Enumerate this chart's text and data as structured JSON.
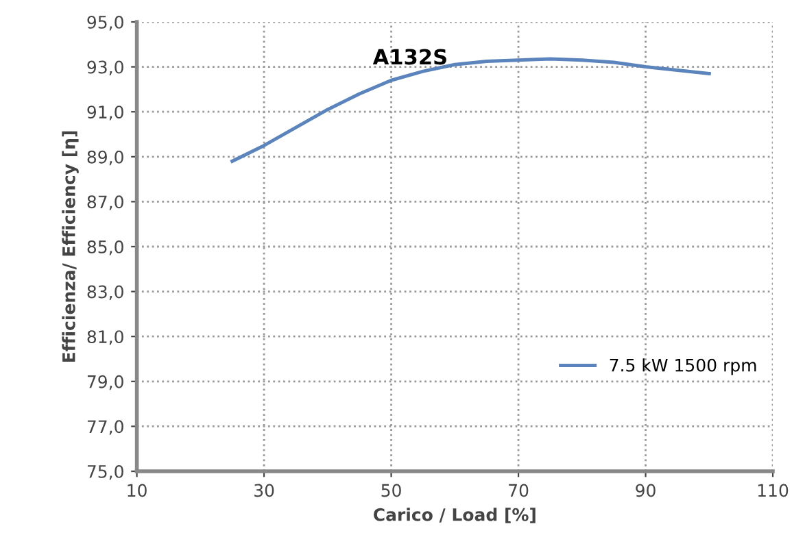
{
  "chart_data": {
    "type": "line",
    "title": "A132S",
    "xlabel": "Carico / Load [%]",
    "ylabel": "Efficienza/ Efficiency [η]",
    "x": [
      25,
      30,
      35,
      40,
      45,
      50,
      55,
      60,
      65,
      70,
      75,
      80,
      85,
      90,
      95,
      100
    ],
    "series": [
      {
        "name": "7.5 kW 1500 rpm",
        "color": "#5b84bd",
        "values": [
          88.8,
          89.5,
          90.3,
          91.1,
          91.8,
          92.4,
          92.8,
          93.1,
          93.25,
          93.3,
          93.35,
          93.3,
          93.2,
          93.0,
          92.85,
          92.7
        ]
      }
    ],
    "xlim": [
      10,
      110
    ],
    "xticks": [
      10,
      30,
      50,
      70,
      90,
      110
    ],
    "ylim": [
      75,
      95
    ],
    "yticks": [
      {
        "value": 75,
        "label": "75,0"
      },
      {
        "value": 77,
        "label": "77,0"
      },
      {
        "value": 79,
        "label": "79,0"
      },
      {
        "value": 81,
        "label": "81,0"
      },
      {
        "value": 83,
        "label": "83,0"
      },
      {
        "value": 85,
        "label": "85,0"
      },
      {
        "value": 87,
        "label": "87,0"
      },
      {
        "value": 89,
        "label": "89,0"
      },
      {
        "value": 91,
        "label": "91,0"
      },
      {
        "value": 93,
        "label": "93,0"
      },
      {
        "value": 95,
        "label": "95,0"
      }
    ],
    "grid": true,
    "legend": "lower right",
    "marker": "none",
    "line_style": "solid"
  }
}
